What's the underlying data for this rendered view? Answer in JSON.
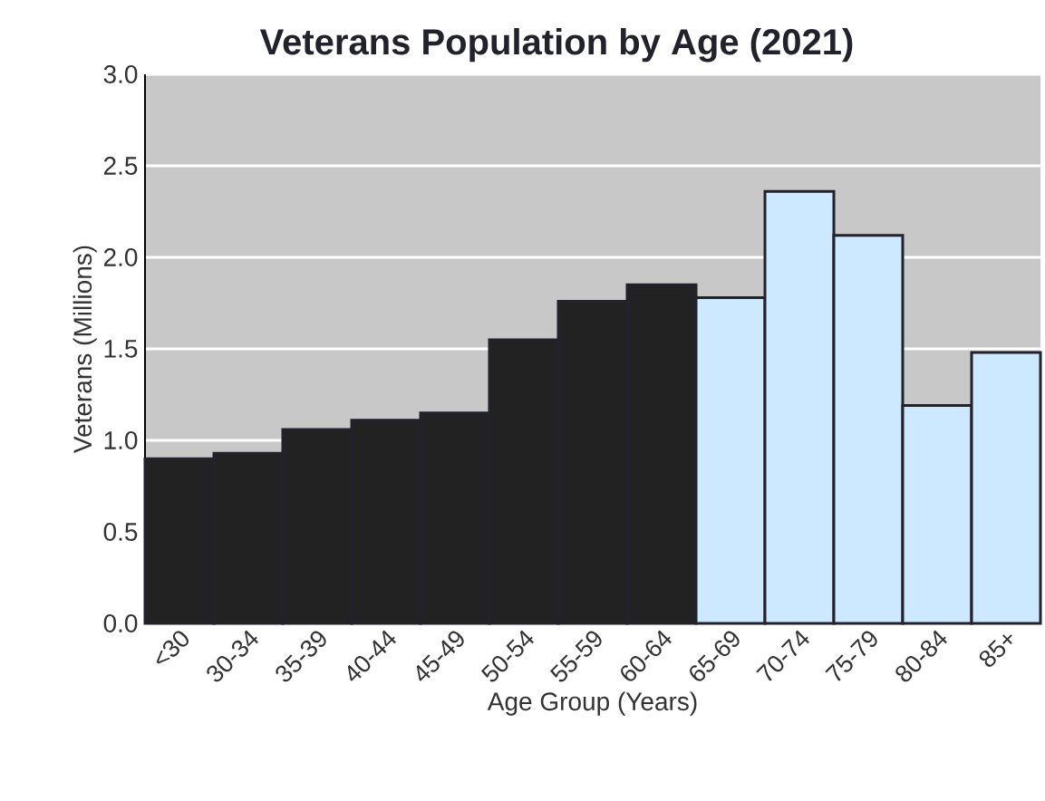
{
  "chart_data": {
    "type": "bar",
    "title": "Veterans Population by Age (2021)",
    "xlabel": "Age Group (Years)",
    "ylabel": "Veterans (Millions)",
    "categories": [
      "<30",
      "30-34",
      "35-39",
      "40-44",
      "45-49",
      "50-54",
      "55-59",
      "60-64",
      "65-69",
      "70-74",
      "75-79",
      "80-84",
      "85+"
    ],
    "values": [
      0.9,
      0.93,
      1.06,
      1.11,
      1.15,
      1.55,
      1.76,
      1.85,
      1.78,
      2.36,
      2.12,
      1.19,
      1.48
    ],
    "colors": [
      "#222222",
      "#222222",
      "#222222",
      "#222222",
      "#222222",
      "#222222",
      "#222222",
      "#222222",
      "#cce9ff",
      "#cce9ff",
      "#cce9ff",
      "#cce9ff",
      "#cce9ff"
    ],
    "ylim": [
      0,
      3
    ],
    "yticks": [
      {
        "value": 0,
        "label": "0.0"
      },
      {
        "value": 0.5,
        "label": "0.5"
      },
      {
        "value": 1,
        "label": "1.0"
      },
      {
        "value": 1.5,
        "label": "1.5"
      },
      {
        "value": 2,
        "label": "2.0"
      },
      {
        "value": 2.5,
        "label": "2.5"
      },
      {
        "value": 3,
        "label": "3.0"
      }
    ],
    "grid": "y"
  }
}
